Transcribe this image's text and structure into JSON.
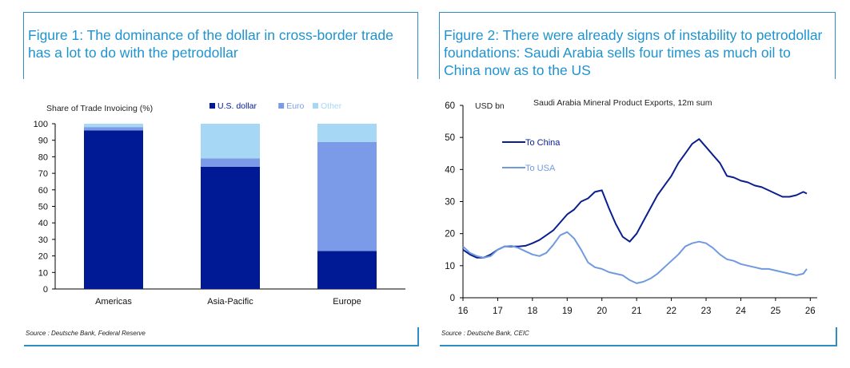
{
  "figure1": {
    "title": "Figure 1: The dominance of the dollar in cross-border trade has a lot to do with the petrodollar",
    "source": "Source : Deutsche Bank, Federal Reserve"
  },
  "figure2": {
    "title": "Figure 2: There were already signs of instability to petrodollar foundations: Saudi Arabia sells four times as much oil to China now as to the US",
    "source": "Source : Deutsche Bank, CEIC"
  },
  "chart_data": [
    {
      "type": "bar",
      "stacked": true,
      "title": "",
      "ylabel": "Share of Trade Invoicing (%)",
      "xlabel": "",
      "ylim": [
        0,
        100
      ],
      "yticks": [
        0,
        10,
        20,
        30,
        40,
        50,
        60,
        70,
        80,
        90,
        100
      ],
      "categories": [
        "Americas",
        "Asia-Pacific",
        "Europe"
      ],
      "legend_position": "top",
      "series": [
        {
          "name": "U.S. dollar",
          "color": "#001a96",
          "values": [
            96,
            74,
            23
          ]
        },
        {
          "name": "Euro",
          "color": "#7b9be8",
          "values": [
            2,
            5,
            66
          ]
        },
        {
          "name": "Other",
          "color": "#a6d8f6",
          "values": [
            2,
            21,
            11
          ]
        }
      ]
    },
    {
      "type": "line",
      "title": "Saudi Arabia Mineral Product Exports, 12m sum",
      "ylabel": "USD bn",
      "xlabel": "",
      "xlim": [
        16,
        26.2
      ],
      "ylim": [
        0,
        60
      ],
      "xticks": [
        16,
        17,
        18,
        19,
        20,
        21,
        22,
        23,
        24,
        25,
        26
      ],
      "yticks": [
        0,
        10,
        20,
        30,
        40,
        50,
        60
      ],
      "legend_position": "top-left",
      "series": [
        {
          "name": "To China",
          "color": "#0a1f8f",
          "x": [
            16.0,
            16.2,
            16.4,
            16.6,
            16.8,
            17.0,
            17.2,
            17.4,
            17.6,
            17.8,
            18.0,
            18.2,
            18.4,
            18.6,
            18.8,
            19.0,
            19.2,
            19.4,
            19.6,
            19.8,
            20.0,
            20.2,
            20.4,
            20.6,
            20.8,
            21.0,
            21.2,
            21.4,
            21.6,
            21.8,
            22.0,
            22.2,
            22.4,
            22.6,
            22.8,
            23.0,
            23.2,
            23.4,
            23.6,
            23.8,
            24.0,
            24.2,
            24.4,
            24.6,
            24.8,
            25.0,
            25.2,
            25.4,
            25.6,
            25.8,
            25.9
          ],
          "y": [
            15,
            13.5,
            12.5,
            12.5,
            13.5,
            15,
            16,
            16,
            16,
            16.2,
            17,
            18,
            19.5,
            21,
            23.5,
            26,
            27.5,
            30,
            31,
            33,
            33.5,
            28,
            23,
            19,
            17.5,
            20,
            24,
            28,
            32,
            35,
            38,
            42,
            45,
            48,
            49.5,
            47,
            44.5,
            42,
            38,
            37.5,
            36.5,
            36,
            35,
            34.5,
            33.5,
            32.5,
            31.5,
            31.5,
            32,
            33,
            32.5
          ]
        },
        {
          "name": "To USA",
          "color": "#6f9ae0",
          "x": [
            16.0,
            16.2,
            16.4,
            16.6,
            16.8,
            17.0,
            17.2,
            17.4,
            17.6,
            17.8,
            18.0,
            18.2,
            18.4,
            18.6,
            18.8,
            19.0,
            19.2,
            19.4,
            19.6,
            19.8,
            20.0,
            20.2,
            20.4,
            20.6,
            20.8,
            21.0,
            21.2,
            21.4,
            21.6,
            21.8,
            22.0,
            22.2,
            22.4,
            22.6,
            22.8,
            23.0,
            23.2,
            23.4,
            23.6,
            23.8,
            24.0,
            24.2,
            24.4,
            24.6,
            24.8,
            25.0,
            25.2,
            25.4,
            25.6,
            25.8,
            25.9
          ],
          "y": [
            16,
            14,
            13,
            12.5,
            13,
            15,
            16,
            16.2,
            15.5,
            14.5,
            13.5,
            13,
            14,
            16.5,
            19.5,
            20.5,
            18.5,
            15,
            11,
            9.5,
            9,
            8,
            7.5,
            7,
            5.5,
            4.5,
            5,
            6,
            7.5,
            9.5,
            11.5,
            13.5,
            16,
            17,
            17.5,
            17,
            15.5,
            13.5,
            12,
            11.5,
            10.5,
            10,
            9.5,
            9,
            9,
            8.5,
            8,
            7.5,
            7,
            7.5,
            9
          ]
        }
      ]
    }
  ]
}
